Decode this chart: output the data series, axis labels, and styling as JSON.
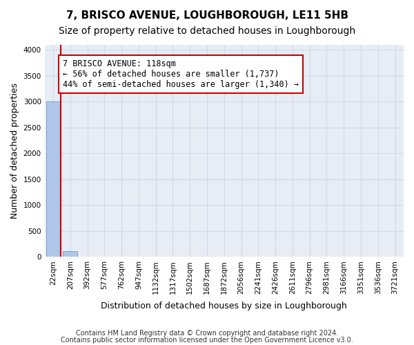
{
  "title": "7, BRISCO AVENUE, LOUGHBOROUGH, LE11 5HB",
  "subtitle": "Size of property relative to detached houses in Loughborough",
  "xlabel": "Distribution of detached houses by size in Loughborough",
  "ylabel": "Number of detached properties",
  "footnote1": "Contains HM Land Registry data © Crown copyright and database right 2024.",
  "footnote2": "Contains public sector information licensed under the Open Government Licence v3.0.",
  "bin_labels": [
    "22sqm",
    "207sqm",
    "392sqm",
    "577sqm",
    "762sqm",
    "947sqm",
    "1132sqm",
    "1317sqm",
    "1502sqm",
    "1687sqm",
    "1872sqm",
    "2056sqm",
    "2241sqm",
    "2426sqm",
    "2611sqm",
    "2796sqm",
    "2981sqm",
    "3166sqm",
    "3351sqm",
    "3536sqm",
    "3721sqm"
  ],
  "bar_values": [
    3000,
    115,
    5,
    2,
    1,
    1,
    0,
    0,
    0,
    0,
    0,
    0,
    0,
    0,
    0,
    0,
    0,
    0,
    0,
    0,
    0
  ],
  "bar_color": "#aec6e8",
  "bar_edge_color": "#5a8fc0",
  "ylim": [
    0,
    4100
  ],
  "yticks": [
    0,
    500,
    1000,
    1500,
    2000,
    2500,
    3000,
    3500,
    4000
  ],
  "property_line_bin": 0.45,
  "annotation_text": "7 BRISCO AVENUE: 118sqm\n← 56% of detached houses are smaller (1,737)\n44% of semi-detached houses are larger (1,340) →",
  "annotation_box_color": "#ffffff",
  "annotation_box_edge_color": "#cc0000",
  "red_line_color": "#cc0000",
  "grid_color": "#d0d8e8",
  "background_color": "#e8edf5",
  "title_fontsize": 11,
  "subtitle_fontsize": 10,
  "annotation_fontsize": 8.5,
  "tick_fontsize": 7.5
}
